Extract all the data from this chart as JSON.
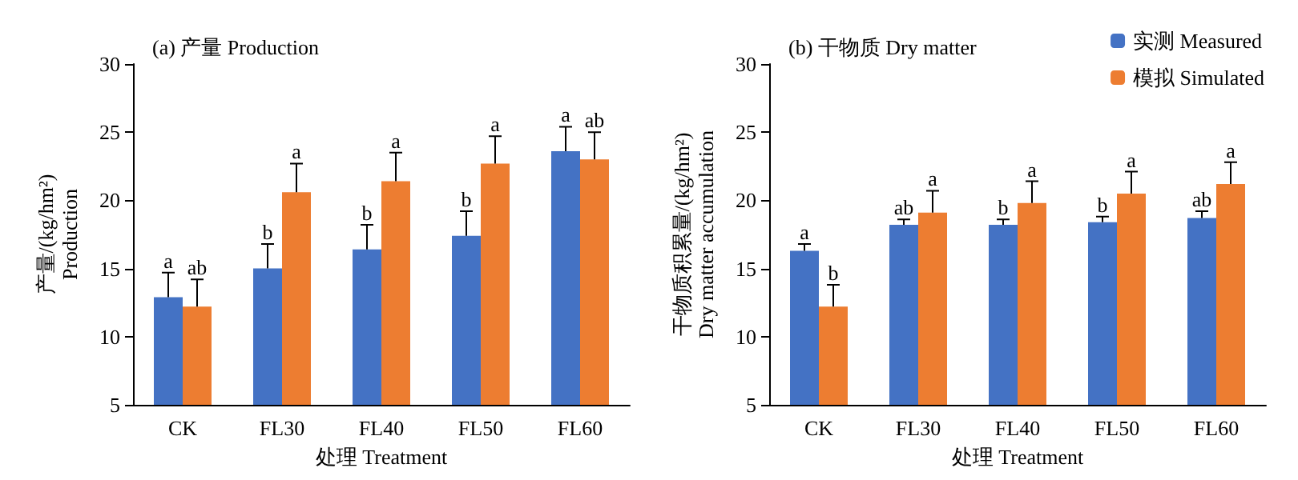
{
  "chart_data": [
    {
      "type": "bar",
      "title": "(a) 产量 Production",
      "xlabel": "处理 Treatment",
      "ylabel": "产量/(kg/hm²)\nProduction",
      "categories": [
        "CK",
        "FL30",
        "FL40",
        "FL50",
        "FL60"
      ],
      "ylim": [
        5,
        30
      ],
      "yticks": [
        5,
        10,
        15,
        20,
        25,
        30
      ],
      "grid": false,
      "legend": false,
      "series": [
        {
          "color": "#4472c4",
          "values": [
            12.9,
            15.0,
            16.4,
            17.4,
            23.6
          ],
          "errors": [
            [
              12.9,
              14.7
            ],
            [
              15.0,
              16.8
            ],
            [
              16.4,
              18.2
            ],
            [
              17.4,
              19.2
            ],
            [
              23.6,
              25.4
            ]
          ]
        },
        {
          "color": "#ed7d31",
          "values": [
            12.2,
            20.6,
            21.4,
            22.7,
            23.0
          ],
          "errors": [
            [
              12.2,
              14.2
            ],
            [
              20.6,
              22.7
            ],
            [
              21.4,
              23.5
            ],
            [
              22.7,
              24.7
            ],
            [
              23.0,
              25.0
            ]
          ]
        }
      ],
      "annotations": [
        {
          "text": "a",
          "x": "CK",
          "y": 12.9
        },
        {
          "text": "ab",
          "x": "CK",
          "y": 12.2
        },
        {
          "text": "b",
          "x": "FL30",
          "y": 15.0
        },
        {
          "text": "a",
          "x": "FL30",
          "y": 20.6
        },
        {
          "text": "b",
          "x": "FL40",
          "y": 16.4
        },
        {
          "text": "a",
          "x": "FL40",
          "y": 21.4
        },
        {
          "text": "b",
          "x": "FL50",
          "y": 17.4
        },
        {
          "text": "a",
          "x": "FL50",
          "y": 22.7
        },
        {
          "text": "a",
          "x": "FL60",
          "y": 23.6
        },
        {
          "text": "ab",
          "x": "FL60",
          "y": 23.0
        }
      ]
    },
    {
      "type": "bar",
      "title": "(b) 干物质 Dry matter",
      "xlabel": "处理 Treatment",
      "ylabel": "干物质积累量/(kg/hm²)\nDry matter accumulation",
      "categories": [
        "CK",
        "FL30",
        "FL40",
        "FL50",
        "FL60"
      ],
      "ylim": [
        5,
        30
      ],
      "yticks": [
        5,
        10,
        15,
        20,
        25,
        30
      ],
      "grid": false,
      "legend": "top right",
      "series": [
        {
          "name": "实测 Measured",
          "color": "#4472c4",
          "values": [
            16.3,
            18.2,
            18.2,
            18.4,
            18.7
          ],
          "errors": [
            [
              16.3,
              16.8
            ],
            [
              18.2,
              18.6
            ],
            [
              18.2,
              18.6
            ],
            [
              18.4,
              18.8
            ],
            [
              18.7,
              19.2
            ]
          ]
        },
        {
          "name": "模拟 Simulated",
          "color": "#ed7d31",
          "values": [
            12.2,
            19.1,
            19.8,
            20.5,
            21.2
          ],
          "errors": [
            [
              12.2,
              13.8
            ],
            [
              19.1,
              20.7
            ],
            [
              19.8,
              21.4
            ],
            [
              20.5,
              22.1
            ],
            [
              21.2,
              22.8
            ]
          ]
        }
      ],
      "annotations": [
        {
          "text": "a",
          "x": "CK",
          "y": 16.3
        },
        {
          "text": "b",
          "x": "CK",
          "y": 12.2
        },
        {
          "text": "ab",
          "x": "FL30",
          "y": 18.2
        },
        {
          "text": "a",
          "x": "FL30",
          "y": 19.1
        },
        {
          "text": "b",
          "x": "FL40",
          "y": 18.2
        },
        {
          "text": "a",
          "x": "FL40",
          "y": 19.8
        },
        {
          "text": "b",
          "x": "FL50",
          "y": 18.4
        },
        {
          "text": "a",
          "x": "FL50",
          "y": 20.5
        },
        {
          "text": "ab",
          "x": "FL60",
          "y": 18.7
        },
        {
          "text": "a",
          "x": "FL60",
          "y": 21.2
        }
      ]
    }
  ]
}
